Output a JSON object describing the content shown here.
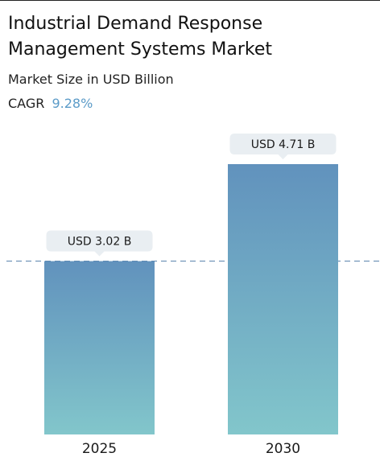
{
  "header": {
    "title": "Industrial Demand Response Management Systems Market",
    "subtitle": "Market Size in USD Billion",
    "cagr_label": "CAGR",
    "cagr_value": "9.28%"
  },
  "chart_data": {
    "type": "bar",
    "title": "Industrial Demand Response Management Systems Market",
    "subtitle": "Market Size in USD Billion",
    "categories": [
      "2025",
      "2030"
    ],
    "values": [
      3.02,
      4.71
    ],
    "data_labels": [
      "USD 3.02 B",
      "USD 4.71 B"
    ],
    "ylim": [
      0,
      4.71
    ],
    "grid": false,
    "reference_line": {
      "value": 3.02,
      "style": "dashed"
    },
    "colors": {
      "bar_top": "#6192bd",
      "bar_bottom": "#82c6cb",
      "label_bg": "#e9eef2",
      "cagr": "#5b9bc8",
      "dashed_line": "#5b85ad"
    }
  }
}
